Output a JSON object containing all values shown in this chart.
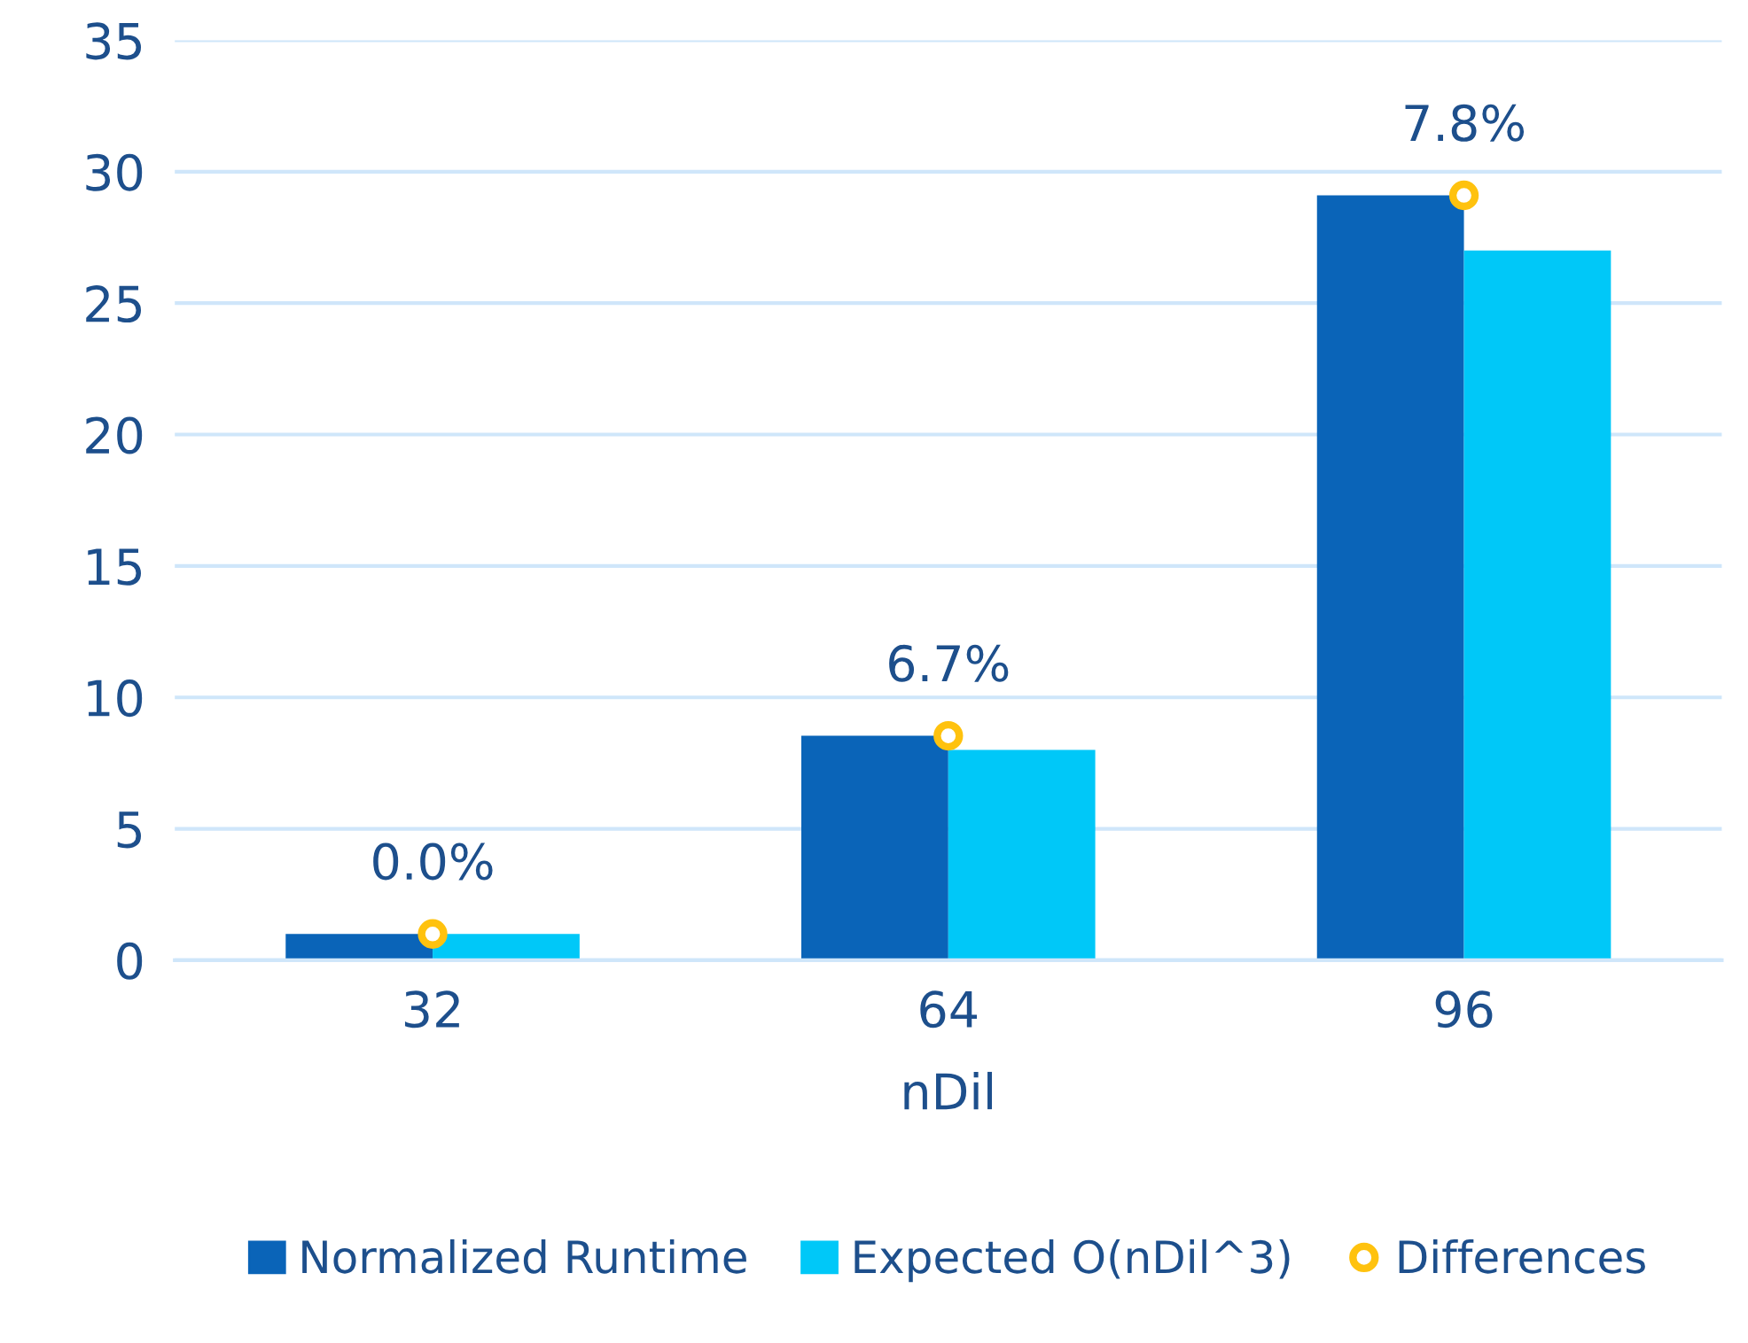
{
  "chart_data": {
    "type": "bar",
    "xlabel": "nDil",
    "categories": [
      "32",
      "64",
      "96"
    ],
    "series": [
      {
        "name": "Normalized Runtime",
        "color": "#0a64b8",
        "values": [
          1,
          8.54,
          29.1
        ]
      },
      {
        "name": "Expected O(nDil^3)",
        "color": "#00c8f8",
        "values": [
          1,
          8,
          27
        ]
      },
      {
        "name": "Differences",
        "type": "scatter",
        "color": "#ffc20e",
        "x": [
          "32",
          "64",
          "96"
        ],
        "values": [
          1,
          8.54,
          29.1
        ],
        "marker": "circle"
      }
    ],
    "annotations": [
      {
        "text": "0.0%",
        "x": "32",
        "y": 1
      },
      {
        "text": "6.7%",
        "x": "64",
        "y": 8.54
      },
      {
        "text": "7.8%",
        "x": "96",
        "y": 29.1
      }
    ],
    "ylim": [
      0,
      35
    ],
    "yticks": [
      0,
      5,
      10,
      15,
      20,
      25,
      30,
      35
    ],
    "grid": "y",
    "legend": "bottom"
  }
}
